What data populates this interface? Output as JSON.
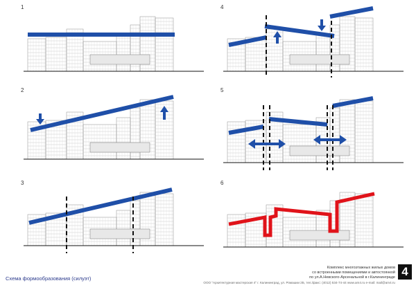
{
  "panels": [
    {
      "label": "1"
    },
    {
      "label": "2"
    },
    {
      "label": "3"
    },
    {
      "label": "4"
    },
    {
      "label": "5"
    },
    {
      "label": "6"
    }
  ],
  "caption": "Схема формообразования (силуэт)",
  "info": {
    "line1": "Комплекс многоэтажных жилых домов",
    "line2": "со встроенными помещениями и автостоянкой",
    "line3": "по ул.А.Невского-Арсенальной в г.Калининграде",
    "footer": "ООО \"Архитектурная мастерская 4\" г. Калининград, ул. Ромашки 2Б, тел./факс: (4012) 534-74-44  www.am4.ru  e-mail: mail@am4.ru"
  },
  "sheet_number": "4",
  "colors": {
    "silhouette": "#1f4fa8",
    "result": "#e0131a",
    "building": "#7a7a7a"
  }
}
